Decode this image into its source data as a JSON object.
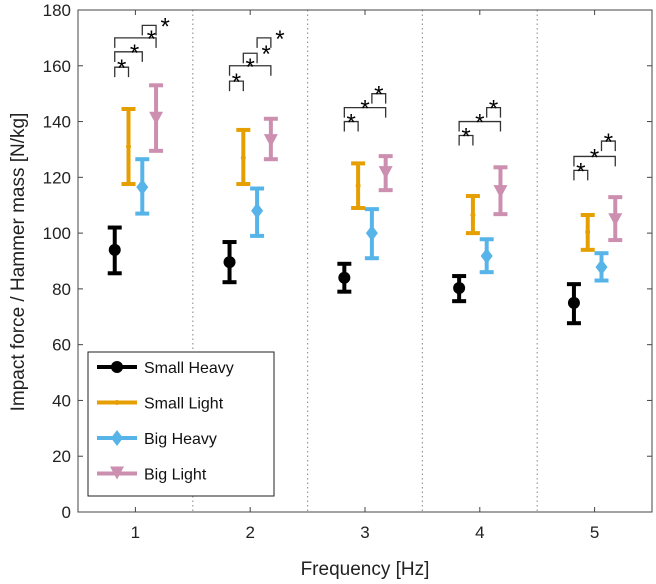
{
  "chart_data": {
    "type": "scatter",
    "subtype": "errorbar",
    "title": "",
    "xlabel": "Frequency [Hz]",
    "ylabel": "Impact force / Hammer mass [N/kg]",
    "xlim": [
      0.5,
      5.5
    ],
    "ylim": [
      0,
      180
    ],
    "xticks": [
      1,
      2,
      3,
      4,
      5
    ],
    "xtick_labels": [
      "1",
      "2",
      "3",
      "4",
      "5"
    ],
    "yticks": [
      0,
      20,
      40,
      60,
      80,
      100,
      120,
      140,
      160,
      180
    ],
    "ytick_labels": [
      "0",
      "20",
      "40",
      "60",
      "80",
      "100",
      "120",
      "140",
      "160",
      "180"
    ],
    "separators": [
      1.5,
      2.5,
      3.5,
      4.5
    ],
    "legend_position": "bottom-left",
    "series": [
      {
        "name": "Small Heavy",
        "color": "#000000",
        "marker": "circle",
        "x_offset": -0.18,
        "mean": [
          94,
          89.6,
          84,
          80.3,
          75
        ],
        "lower": [
          85.6,
          82.4,
          79,
          75.6,
          67.7
        ],
        "upper": [
          102,
          96.8,
          89,
          84.6,
          81.7
        ]
      },
      {
        "name": "Small Light",
        "color": "#E69F00",
        "marker": "point",
        "x_offset": -0.06,
        "mean": [
          131,
          127,
          117,
          106.5,
          100.4
        ],
        "lower": [
          117.6,
          117.6,
          109,
          100,
          94
        ],
        "upper": [
          144.5,
          137,
          125,
          113.3,
          106.5
        ]
      },
      {
        "name": "Big Heavy",
        "color": "#56B4E9",
        "marker": "diamond",
        "x_offset": 0.06,
        "mean": [
          116.5,
          108,
          100,
          91.8,
          87.8
        ],
        "lower": [
          107,
          99,
          91,
          86,
          83
        ],
        "upper": [
          126.5,
          116,
          108.6,
          97.8,
          92.8
        ]
      },
      {
        "name": "Big Light",
        "color": "#CC8FB0",
        "marker": "triangle-down",
        "x_offset": 0.18,
        "mean": [
          141,
          133,
          121.5,
          114.7,
          104.6
        ],
        "lower": [
          129.5,
          126.5,
          115.4,
          106.8,
          97.5
        ],
        "upper": [
          153,
          141,
          127.6,
          123.6,
          112.9
        ]
      }
    ],
    "significance": [
      {
        "freq": 1,
        "from": 0,
        "to": 1,
        "level": 159.5,
        "label": "*"
      },
      {
        "freq": 1,
        "from": 0,
        "to": 2,
        "level": 165,
        "label": "*"
      },
      {
        "freq": 1,
        "from": 0,
        "to": 3,
        "level": 170,
        "label": "*"
      },
      {
        "freq": 1,
        "from": 2,
        "to": 3,
        "level": 174.5,
        "label": "*"
      },
      {
        "freq": 2,
        "from": 0,
        "to": 1,
        "level": 154.5,
        "label": "*"
      },
      {
        "freq": 2,
        "from": 0,
        "to": 3,
        "level": 160,
        "label": "*"
      },
      {
        "freq": 2,
        "from": 1,
        "to": 2,
        "level": 164.5,
        "label": "*"
      },
      {
        "freq": 2,
        "from": 2,
        "to": 3,
        "level": 170,
        "label": "*"
      },
      {
        "freq": 3,
        "from": 0,
        "to": 1,
        "level": 140,
        "label": "*"
      },
      {
        "freq": 3,
        "from": 0,
        "to": 3,
        "level": 145,
        "label": "*"
      },
      {
        "freq": 3,
        "from": 2,
        "to": 3,
        "level": 150,
        "label": "*"
      },
      {
        "freq": 4,
        "from": 0,
        "to": 1,
        "level": 135,
        "label": "*"
      },
      {
        "freq": 4,
        "from": 0,
        "to": 3,
        "level": 140,
        "label": "*"
      },
      {
        "freq": 4,
        "from": 2,
        "to": 3,
        "level": 145,
        "label": "*"
      },
      {
        "freq": 5,
        "from": 0,
        "to": 1,
        "level": 122.5,
        "label": "*"
      },
      {
        "freq": 5,
        "from": 0,
        "to": 3,
        "level": 127.5,
        "label": "*"
      },
      {
        "freq": 5,
        "from": 2,
        "to": 3,
        "level": 133,
        "label": "*"
      }
    ]
  }
}
